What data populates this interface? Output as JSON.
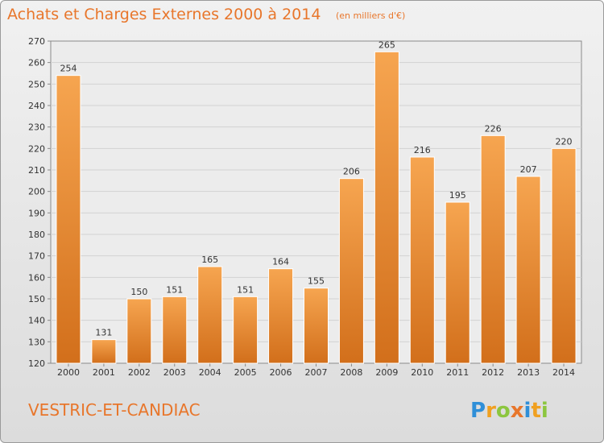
{
  "header": {
    "title": "Achats et Charges Externes 2000 à 2014",
    "subtitle": "(en milliers d'€)"
  },
  "footer": {
    "place": "VESTRIC-ET-CANDIAC",
    "logo_text": "Proxiti"
  },
  "colors": {
    "accent": "#e8762b",
    "bar_light": "#f6a550",
    "bar_dark": "#d26f1b"
  },
  "chart_data": {
    "type": "bar",
    "title": "Achats et Charges Externes 2000 à 2014",
    "subtitle": "(en milliers d'€)",
    "xlabel": "",
    "ylabel": "",
    "ylim": [
      120,
      270
    ],
    "yticks": [
      120,
      130,
      140,
      150,
      160,
      170,
      180,
      190,
      200,
      210,
      220,
      230,
      240,
      250,
      260,
      270
    ],
    "grid": true,
    "categories": [
      "2000",
      "2001",
      "2002",
      "2003",
      "2004",
      "2005",
      "2006",
      "2007",
      "2008",
      "2009",
      "2010",
      "2011",
      "2012",
      "2013",
      "2014"
    ],
    "values": [
      254,
      131,
      150,
      151,
      165,
      151,
      164,
      155,
      206,
      265,
      216,
      195,
      226,
      207,
      220
    ]
  }
}
